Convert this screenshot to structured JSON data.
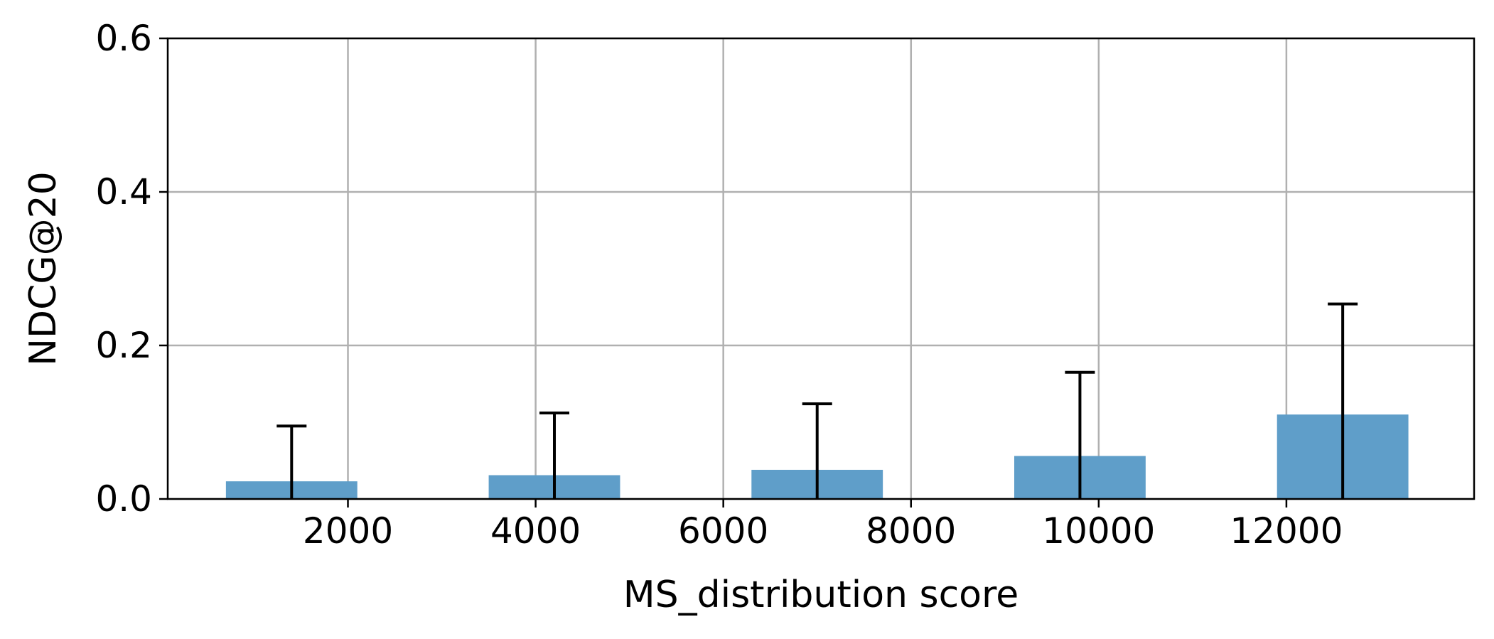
{
  "chart_data": {
    "type": "bar",
    "title": "",
    "xlabel": "MS_distribution score",
    "ylabel": "NDCG@20",
    "xlim": [
      80,
      14000
    ],
    "ylim": [
      0.0,
      0.6
    ],
    "xticks": [
      2000,
      4000,
      6000,
      8000,
      10000,
      12000
    ],
    "xtick_labels": [
      "2000",
      "4000",
      "6000",
      "8000",
      "10000",
      "12000"
    ],
    "yticks": [
      0.0,
      0.2,
      0.4,
      0.6
    ],
    "ytick_labels": [
      "0.0",
      "0.2",
      "0.4",
      "0.6"
    ],
    "grid": true,
    "bar_color": "#5f9ec9",
    "bars": [
      {
        "x_start": 700,
        "x_end": 2100,
        "value": 0.023,
        "error_x": 1400,
        "error_top": 0.095
      },
      {
        "x_start": 3500,
        "x_end": 4900,
        "value": 0.031,
        "error_x": 4200,
        "error_top": 0.112
      },
      {
        "x_start": 6300,
        "x_end": 7700,
        "value": 0.038,
        "error_x": 7000,
        "error_top": 0.124
      },
      {
        "x_start": 9100,
        "x_end": 10500,
        "value": 0.056,
        "error_x": 9800,
        "error_top": 0.165
      },
      {
        "x_start": 11900,
        "x_end": 13300,
        "value": 0.11,
        "error_x": 12600,
        "error_top": 0.254
      }
    ]
  }
}
